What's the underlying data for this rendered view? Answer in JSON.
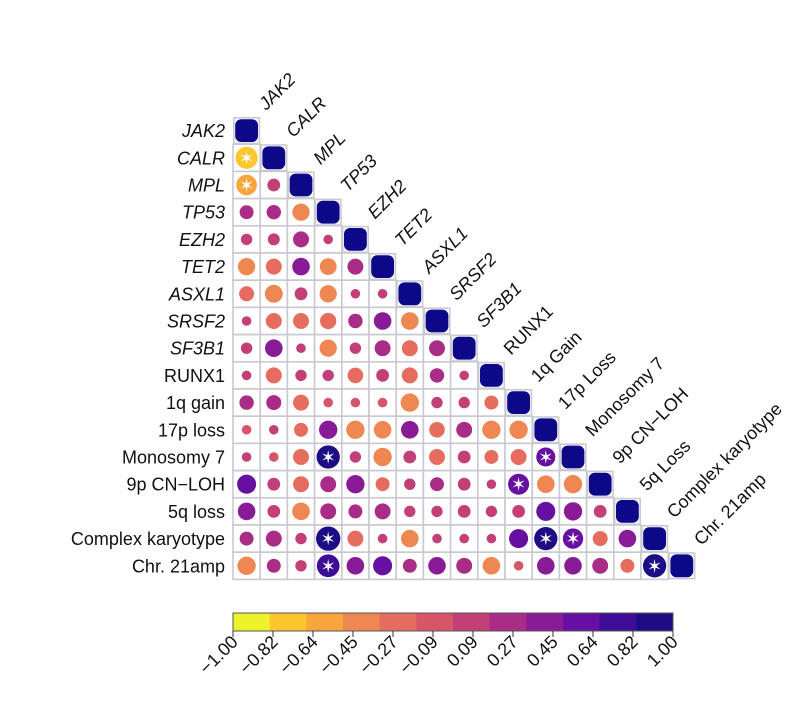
{
  "chart_data": {
    "type": "heatmap",
    "variables": [
      "JAK2",
      "CALR",
      "MPL",
      "TP53",
      "EZH2",
      "TET2",
      "ASXL1",
      "SRSF2",
      "SF3B1",
      "RUNX1",
      "1q gain",
      "17p loss",
      "Monosomy 7",
      "9p CN−LOH",
      "5q loss",
      "Complex karyotype",
      "Chr. 21amp"
    ],
    "italic_variables": [
      "JAK2",
      "CALR",
      "MPL",
      "TP53",
      "EZH2",
      "TET2",
      "ASXL1",
      "SRSF2",
      "SF3B1"
    ],
    "column_labels": [
      "JAK2",
      "CALR",
      "MPL",
      "TP53",
      "EZH2",
      "TET2",
      "ASXL1",
      "SRSF2",
      "SF3B1",
      "RUNX1",
      "1q Gain",
      "17p Loss",
      "Monosomy 7",
      "9p CN−LOH",
      "5q Loss",
      "Complex karyotype",
      "Chr. 21amp"
    ],
    "lower_triangle": [
      [],
      [
        -0.75
      ],
      [
        -0.62,
        0.15
      ],
      [
        0.2,
        0.22,
        -0.38
      ],
      [
        0.1,
        0.12,
        0.3,
        0.05
      ],
      [
        -0.38,
        -0.3,
        0.4,
        -0.35,
        0.3
      ],
      [
        -0.25,
        -0.42,
        0.15,
        -0.38,
        0.05,
        0.05
      ],
      [
        0.05,
        -0.3,
        -0.3,
        -0.32,
        0.22,
        0.4,
        -0.4
      ],
      [
        0.1,
        0.4,
        0.05,
        -0.38,
        0.1,
        0.3,
        -0.3,
        0.3
      ],
      [
        0.05,
        -0.3,
        0.1,
        0.1,
        -0.28,
        0.15,
        -0.3,
        0.22,
        0.05
      ],
      [
        0.22,
        0.25,
        -0.3,
        -0.05,
        -0.05,
        -0.05,
        -0.45,
        0.1,
        0.1,
        -0.2
      ],
      [
        -0.05,
        0.05,
        -0.2,
        0.45,
        -0.45,
        -0.4,
        0.4,
        -0.28,
        0.3,
        -0.45,
        -0.45
      ],
      [
        0.05,
        -0.05,
        -0.3,
        0.85,
        0.1,
        -0.45,
        0.15,
        -0.3,
        0.15,
        -0.2,
        -0.3,
        0.5
      ],
      [
        0.5,
        0.15,
        -0.3,
        0.3,
        0.45,
        -0.2,
        0.1,
        0.2,
        0.15,
        0.05,
        0.65,
        -0.4,
        -0.45
      ],
      [
        0.4,
        0.15,
        -0.4,
        0.3,
        0.2,
        0.3,
        0.1,
        0.1,
        0.15,
        0.1,
        0.15,
        0.5,
        0.45,
        0.15
      ],
      [
        0.2,
        0.3,
        0.1,
        0.95,
        -0.3,
        0.05,
        -0.4,
        0.05,
        0.05,
        0.05,
        0.5,
        0.85,
        0.6,
        -0.25,
        0.4
      ],
      [
        -0.45,
        0.2,
        0.1,
        0.8,
        0.4,
        0.5,
        0.2,
        0.4,
        0.3,
        -0.4,
        -0.05,
        0.4,
        0.4,
        0.3,
        -0.2,
        0.85
      ]
    ],
    "significant_cells": [
      [
        1,
        0
      ],
      [
        2,
        0
      ],
      [
        12,
        3
      ],
      [
        12,
        11
      ],
      [
        13,
        10
      ],
      [
        15,
        3
      ],
      [
        15,
        11
      ],
      [
        15,
        12
      ],
      [
        16,
        3
      ],
      [
        16,
        15
      ]
    ],
    "diagonal_value": 1.0,
    "colorbar_ticks": [
      "−1.00",
      "−0.82",
      "−0.64",
      "−0.45",
      "−0.27",
      "−0.09",
      "0.09",
      "0.27",
      "0.45",
      "0.64",
      "0.82",
      "1.00"
    ],
    "colorbar_range": [
      -1.0,
      1.0
    ],
    "colorbar_colors": [
      "#eef22a",
      "#fbc62e",
      "#f8a53d",
      "#ee8752",
      "#e56c5e",
      "#d75569",
      "#c33f77",
      "#a92c86",
      "#8a1b96",
      "#6510a0",
      "#3e0c96",
      "#1e0c85"
    ],
    "diagonal_color": "#0d0887",
    "star_symbol": "✶"
  }
}
